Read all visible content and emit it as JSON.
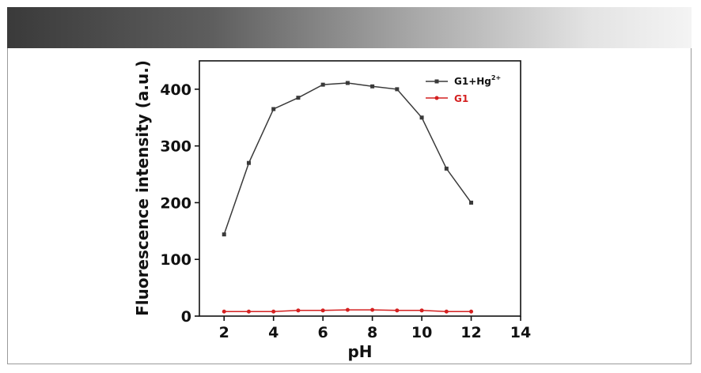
{
  "chart_data": {
    "type": "line",
    "xlabel": "pH",
    "ylabel": "Fluorescence intensity (a.u.)",
    "xlim": [
      1,
      14
    ],
    "ylim": [
      0,
      450
    ],
    "xticks": [
      2,
      4,
      6,
      8,
      10,
      12,
      14
    ],
    "yticks": [
      0,
      100,
      200,
      300,
      400
    ],
    "legend_position": "top-right",
    "x": [
      2,
      3,
      4,
      5,
      6,
      7,
      8,
      9,
      10,
      11,
      12
    ],
    "series": [
      {
        "name": "G1+Hg",
        "name_superscript": "2+",
        "color": "#3a3a3a",
        "marker": "square",
        "values": [
          144,
          270,
          365,
          385,
          408,
          411,
          405,
          400,
          350,
          260,
          200
        ]
      },
      {
        "name": "G1",
        "color": "#d42020",
        "marker": "circle",
        "values": [
          8,
          8,
          8,
          10,
          10,
          11,
          11,
          10,
          10,
          8,
          8
        ]
      }
    ]
  }
}
